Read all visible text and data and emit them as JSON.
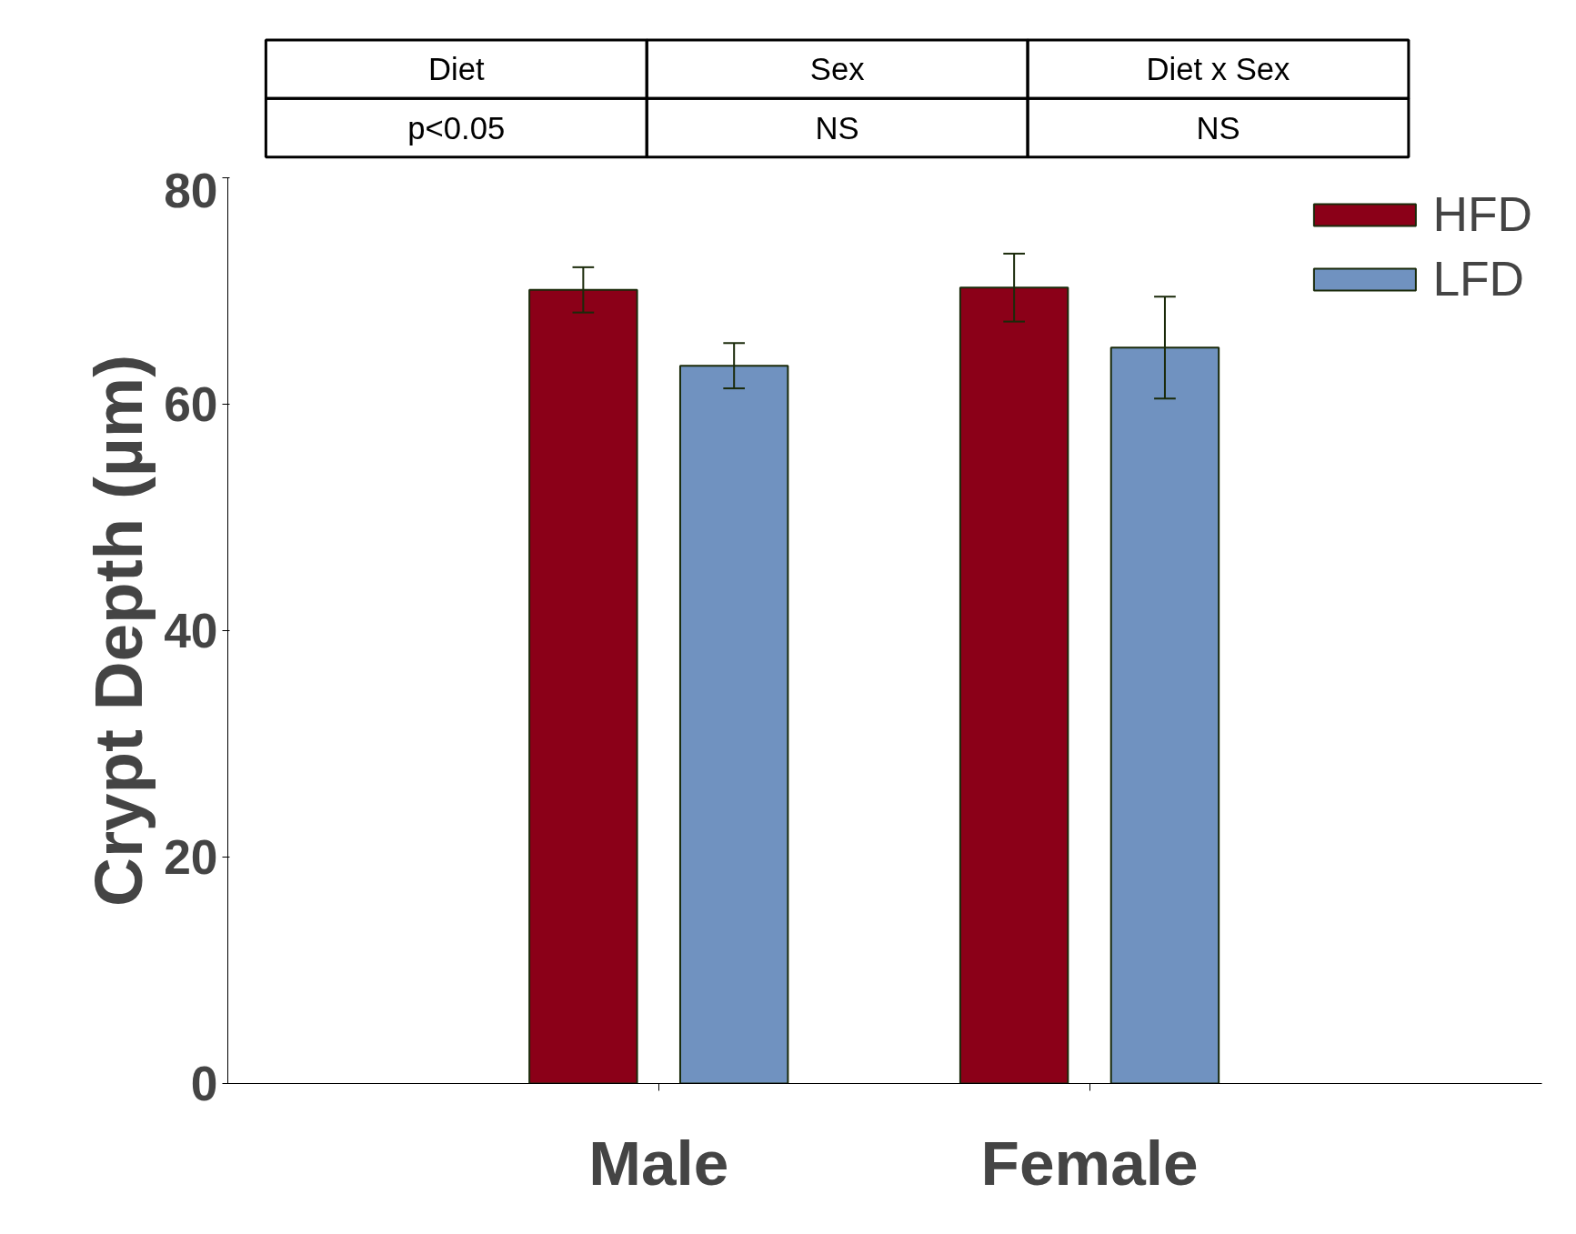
{
  "chart_data": {
    "type": "bar",
    "ylabel": "Crypt Depth (µm)",
    "categories": [
      "Male",
      "Female"
    ],
    "series": [
      {
        "name": "HFD",
        "color": "#8b0018",
        "values": [
          70.1,
          70.3
        ],
        "errors": [
          2,
          3
        ]
      },
      {
        "name": "LFD",
        "color": "#7092c0",
        "values": [
          63.4,
          65.0
        ],
        "errors": [
          2,
          4.5
        ]
      }
    ],
    "ylim": [
      0,
      80
    ],
    "yticks": [
      0,
      20,
      40,
      60,
      80
    ],
    "grid": false,
    "legend": "top right",
    "annotations": [
      "Diet",
      "Sex",
      "Diet x Sex",
      "p<0.05",
      "NS",
      "NS"
    ]
  }
}
